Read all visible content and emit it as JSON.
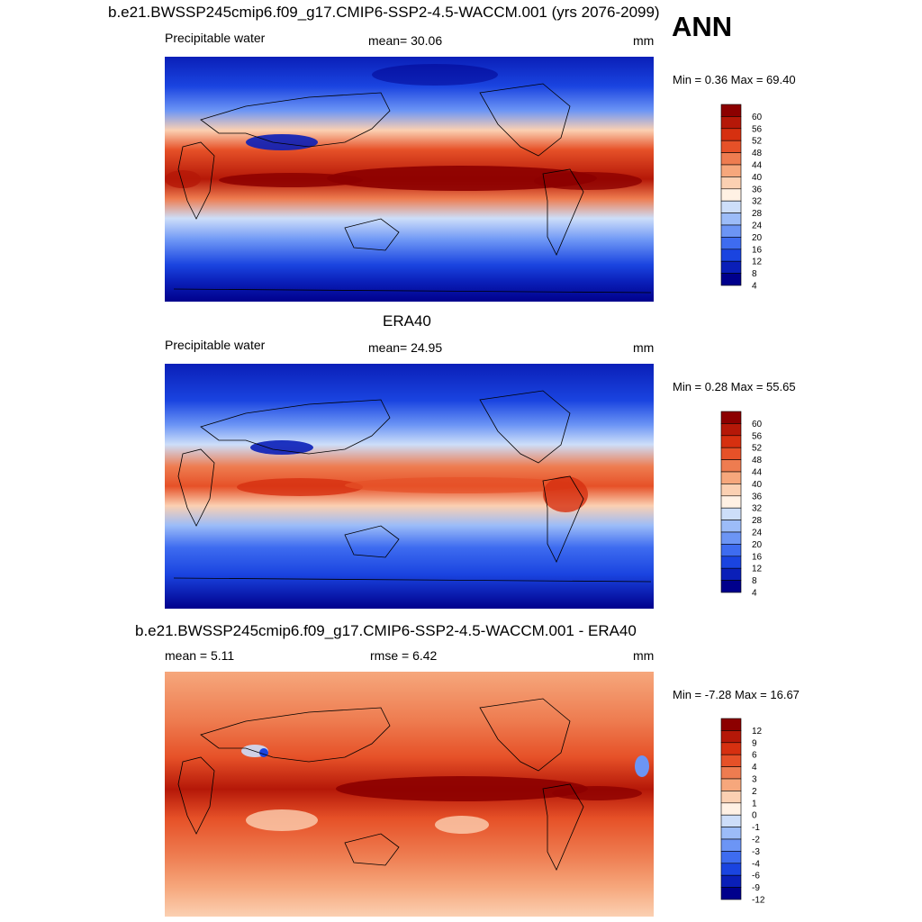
{
  "season": "ANN",
  "colors": {
    "abs_scale": [
      "#00008c",
      "#0a1fb8",
      "#1a44e0",
      "#3e6cf0",
      "#6c95f5",
      "#9cbcf8",
      "#cddef9",
      "#fff1e4",
      "#fbd0b2",
      "#f6a77c",
      "#ee7c50",
      "#e65128",
      "#d63010",
      "#b51808",
      "#8c0000"
    ],
    "diff_scale": [
      "#00008c",
      "#0a1fb8",
      "#1a44e0",
      "#3e6cf0",
      "#6c95f5",
      "#9cbcf8",
      "#cddef9",
      "#fff1e4",
      "#fbd0b2",
      "#f6a77c",
      "#ee7c50",
      "#e65128",
      "#d63010",
      "#b51808",
      "#8c0000"
    ],
    "coastline": "#000000"
  },
  "panels": [
    {
      "title": "b.e21.BWSSP245cmip6.f09_g17.CMIP6-SSP2-4.5-WACCM.001 (yrs 2076-2099)",
      "left_label": "Precipitable water",
      "center_label": "mean=  30.06",
      "units": "mm",
      "minmax": "Min =   0.36 Max =  69.40",
      "colorbar_labels": [
        "60",
        "56",
        "52",
        "48",
        "44",
        "40",
        "36",
        "32",
        "28",
        "24",
        "20",
        "16",
        "12",
        "8",
        "4"
      ]
    },
    {
      "title": "ERA40",
      "left_label": "Precipitable water",
      "center_label": "mean=  24.95",
      "units": "mm",
      "minmax": "Min =   0.28 Max =  55.65",
      "colorbar_labels": [
        "60",
        "56",
        "52",
        "48",
        "44",
        "40",
        "36",
        "32",
        "28",
        "24",
        "20",
        "16",
        "12",
        "8",
        "4"
      ]
    },
    {
      "title": "b.e21.BWSSP245cmip6.f09_g17.CMIP6-SSP2-4.5-WACCM.001 - ERA40",
      "left_label": "mean =    5.11",
      "center_label": "rmse =    6.42",
      "units": "mm",
      "minmax": "Min =  -7.28 Max =  16.67",
      "colorbar_labels": [
        "12",
        "9",
        "6",
        "4",
        "3",
        "2",
        "1",
        "0",
        "-1",
        "-2",
        "-3",
        "-4",
        "-6",
        "-9",
        "-12"
      ]
    }
  ],
  "chart_data": [
    {
      "type": "heatmap",
      "title": "b.e21.BWSSP245cmip6.f09_g17.CMIP6-SSP2-4.5-WACCM.001 (yrs 2076-2099)",
      "variable": "Precipitable water",
      "units": "mm",
      "mean": 30.06,
      "min": 0.36,
      "max": 69.4,
      "levels": [
        4,
        8,
        12,
        16,
        20,
        24,
        28,
        32,
        36,
        40,
        44,
        48,
        52,
        56,
        60
      ]
    },
    {
      "type": "heatmap",
      "title": "ERA40",
      "variable": "Precipitable water",
      "units": "mm",
      "mean": 24.95,
      "min": 0.28,
      "max": 55.65,
      "levels": [
        4,
        8,
        12,
        16,
        20,
        24,
        28,
        32,
        36,
        40,
        44,
        48,
        52,
        56,
        60
      ]
    },
    {
      "type": "heatmap",
      "title": "b.e21.BWSSP245cmip6.f09_g17.CMIP6-SSP2-4.5-WACCM.001 - ERA40",
      "units": "mm",
      "mean": 5.11,
      "rmse": 6.42,
      "min": -7.28,
      "max": 16.67,
      "levels": [
        -12,
        -9,
        -6,
        -4,
        -3,
        -2,
        -1,
        0,
        1,
        2,
        3,
        4,
        6,
        9,
        12
      ]
    }
  ]
}
